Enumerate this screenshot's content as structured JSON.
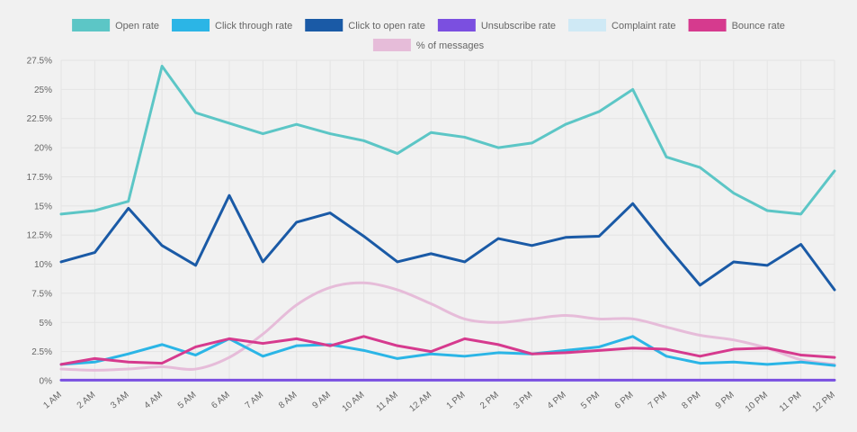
{
  "chart_data": {
    "type": "line",
    "categories": [
      "1 AM",
      "2 AM",
      "3 AM",
      "4 AM",
      "5 AM",
      "6 AM",
      "7 AM",
      "8 AM",
      "9 AM",
      "10 AM",
      "11 AM",
      "12 AM",
      "1 PM",
      "2 PM",
      "3 PM",
      "4 PM",
      "5 PM",
      "6 PM",
      "7 PM",
      "8 PM",
      "9 PM",
      "10 PM",
      "11 PM",
      "12 PM"
    ],
    "y_ticks": [
      "0%",
      "2.5%",
      "5%",
      "7.5%",
      "10%",
      "12.5%",
      "15%",
      "17.5%",
      "20%",
      "22.5%",
      "25%",
      "27.5%"
    ],
    "ylim": [
      0,
      27.5
    ],
    "grid": true,
    "legend_position": "top",
    "series": [
      {
        "name": "Open rate",
        "color": "#5cc6c6",
        "smooth": false,
        "values": [
          14.3,
          14.6,
          15.4,
          27.0,
          23.0,
          22.1,
          21.2,
          22.0,
          21.2,
          20.6,
          19.5,
          21.3,
          20.9,
          20.0,
          20.4,
          22.0,
          23.1,
          25.0,
          19.2,
          18.3,
          16.1,
          14.6,
          14.3,
          18.0
        ]
      },
      {
        "name": "Click through rate",
        "color": "#2bb5e6",
        "smooth": false,
        "values": [
          1.4,
          1.6,
          2.3,
          3.1,
          2.2,
          3.6,
          2.1,
          3.0,
          3.1,
          2.6,
          1.9,
          2.3,
          2.1,
          2.4,
          2.3,
          2.6,
          2.9,
          3.8,
          2.1,
          1.5,
          1.6,
          1.4,
          1.6,
          1.3
        ]
      },
      {
        "name": "Click to open rate",
        "color": "#1a5aa6",
        "smooth": false,
        "values": [
          10.2,
          11.0,
          14.8,
          11.6,
          9.9,
          15.9,
          10.2,
          13.6,
          14.4,
          12.4,
          10.2,
          10.9,
          10.2,
          12.2,
          11.6,
          12.3,
          12.4,
          15.2,
          11.6,
          8.2,
          10.2,
          9.9,
          11.7,
          7.8
        ]
      },
      {
        "name": "Unsubscribe rate",
        "color": "#7b4fe0",
        "smooth": false,
        "values": [
          0.05,
          0.05,
          0.05,
          0.05,
          0.05,
          0.05,
          0.05,
          0.05,
          0.05,
          0.05,
          0.05,
          0.05,
          0.05,
          0.05,
          0.05,
          0.05,
          0.05,
          0.05,
          0.05,
          0.05,
          0.05,
          0.05,
          0.05,
          0.05
        ]
      },
      {
        "name": "Complaint rate",
        "color": "#cfe9f5",
        "smooth": false,
        "values": [
          0.02,
          0.02,
          0.02,
          0.02,
          0.02,
          0.02,
          0.02,
          0.02,
          0.02,
          0.02,
          0.02,
          0.02,
          0.02,
          0.02,
          0.02,
          0.02,
          0.02,
          0.02,
          0.02,
          0.02,
          0.02,
          0.02,
          0.02,
          0.02
        ]
      },
      {
        "name": "Bounce rate",
        "color": "#d63a8e",
        "smooth": false,
        "values": [
          1.4,
          1.9,
          1.6,
          1.5,
          2.9,
          3.6,
          3.2,
          3.6,
          3.0,
          3.8,
          3.0,
          2.5,
          3.6,
          3.1,
          2.3,
          2.4,
          2.6,
          2.8,
          2.7,
          2.1,
          2.7,
          2.8,
          2.2,
          2.0
        ]
      },
      {
        "name": "% of messages",
        "color": "#e6bcd9",
        "smooth": true,
        "values": [
          1.0,
          0.9,
          1.0,
          1.2,
          1.0,
          2.0,
          4.0,
          6.5,
          8.0,
          8.4,
          7.8,
          6.6,
          5.3,
          5.0,
          5.3,
          5.6,
          5.3,
          5.3,
          4.6,
          3.9,
          3.5,
          2.8,
          1.8,
          1.4
        ]
      }
    ]
  }
}
